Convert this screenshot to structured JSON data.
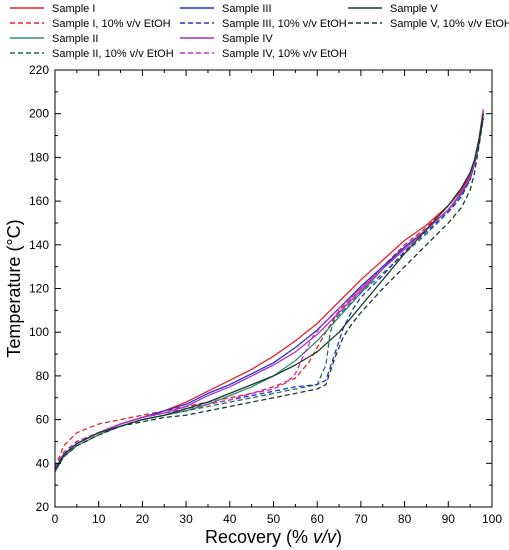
{
  "chart_data": {
    "type": "line",
    "title": "",
    "xlabel_main": "Recovery (% ",
    "xlabel_italic": "v/v",
    "xlabel_end": ")",
    "ylabel": "Temperature (°C)",
    "xlim": [
      0,
      100
    ],
    "ylim": [
      20,
      220
    ],
    "xticks": [
      0,
      10,
      20,
      30,
      40,
      50,
      60,
      70,
      80,
      90,
      100
    ],
    "yticks": [
      20,
      40,
      60,
      80,
      100,
      120,
      140,
      160,
      180,
      200,
      220
    ],
    "grid": false,
    "legend_placement": "top",
    "series": [
      {
        "name": "Sample I",
        "color": "#e8202a",
        "dash": false,
        "x": [
          0,
          2,
          5,
          10,
          15,
          20,
          25,
          30,
          35,
          40,
          45,
          50,
          55,
          60,
          65,
          70,
          75,
          80,
          85,
          90,
          93,
          95,
          96,
          97,
          98
        ],
        "y": [
          37,
          44,
          49,
          54,
          58,
          61,
          64,
          68,
          73,
          78,
          83,
          89,
          96,
          104,
          114,
          124,
          133,
          142,
          149,
          158,
          165,
          172,
          178,
          188,
          200
        ]
      },
      {
        "name": "Sample I, 10% v/v EtOH",
        "color": "#e8202a",
        "dash": true,
        "x": [
          0,
          2,
          5,
          10,
          15,
          20,
          25,
          30,
          35,
          40,
          45,
          50,
          55,
          58,
          60,
          62,
          65,
          70,
          75,
          80,
          85,
          90,
          93,
          95,
          96,
          97,
          98
        ],
        "y": [
          38,
          48,
          54,
          58,
          60,
          62,
          64,
          66,
          68,
          70,
          72,
          75,
          79,
          86,
          93,
          100,
          110,
          120,
          130,
          140,
          148,
          158,
          165,
          172,
          178,
          188,
          200
        ]
      },
      {
        "name": "Sample II",
        "color": "#2e8b7a",
        "dash": false,
        "x": [
          0,
          2,
          5,
          10,
          15,
          20,
          25,
          30,
          35,
          40,
          45,
          50,
          55,
          60,
          65,
          70,
          75,
          80,
          85,
          90,
          93,
          95,
          96,
          97,
          98
        ],
        "y": [
          36,
          43,
          48,
          53,
          57,
          60,
          62,
          64,
          67,
          71,
          75,
          80,
          87,
          96,
          107,
          118,
          129,
          139,
          147,
          156,
          163,
          170,
          177,
          186,
          198
        ]
      },
      {
        "name": "Sample II, 10% v/v EtOH",
        "color": "#1f6f5f",
        "dash": true,
        "x": [
          0,
          2,
          5,
          10,
          15,
          20,
          25,
          30,
          35,
          40,
          45,
          50,
          55,
          60,
          62,
          63,
          64,
          66,
          70,
          75,
          80,
          85,
          90,
          93,
          95,
          96,
          97,
          98
        ],
        "y": [
          38,
          44,
          49,
          54,
          57,
          60,
          62,
          64,
          66,
          68,
          70,
          72,
          74,
          76,
          85,
          100,
          106,
          110,
          118,
          127,
          136,
          145,
          155,
          162,
          170,
          177,
          186,
          198
        ]
      },
      {
        "name": "Sample III",
        "color": "#2233cc",
        "dash": false,
        "x": [
          0,
          2,
          5,
          10,
          15,
          20,
          25,
          30,
          35,
          40,
          45,
          50,
          55,
          60,
          65,
          70,
          75,
          80,
          85,
          90,
          93,
          95,
          96,
          97,
          98
        ],
        "y": [
          37,
          44,
          49,
          54,
          58,
          61,
          64,
          67,
          72,
          76,
          81,
          86,
          93,
          101,
          111,
          121,
          130,
          139,
          147,
          156,
          164,
          171,
          178,
          188,
          201
        ]
      },
      {
        "name": "Sample III, 10% v/v EtOH",
        "color": "#2233cc",
        "dash": true,
        "x": [
          0,
          2,
          5,
          10,
          15,
          20,
          25,
          30,
          35,
          40,
          45,
          50,
          55,
          60,
          62,
          64,
          66,
          68,
          70,
          75,
          80,
          85,
          90,
          93,
          95,
          96,
          97,
          98
        ],
        "y": [
          38,
          45,
          50,
          54,
          58,
          61,
          63,
          65,
          67,
          69,
          71,
          73,
          75,
          76,
          78,
          90,
          102,
          110,
          116,
          126,
          137,
          146,
          155,
          162,
          170,
          177,
          187,
          200
        ]
      },
      {
        "name": "Sample IV",
        "color": "#b22cc8",
        "dash": false,
        "x": [
          0,
          2,
          5,
          10,
          15,
          20,
          25,
          30,
          35,
          40,
          45,
          50,
          55,
          60,
          65,
          70,
          75,
          80,
          85,
          90,
          93,
          95,
          96,
          97,
          98
        ],
        "y": [
          37,
          44,
          49,
          54,
          58,
          61,
          63,
          66,
          71,
          75,
          80,
          85,
          91,
          99,
          109,
          119,
          129,
          138,
          147,
          156,
          164,
          171,
          178,
          188,
          202
        ]
      },
      {
        "name": "Sample IV, 10% v/v EtOH",
        "color": "#c82cc8",
        "dash": true,
        "x": [
          0,
          2,
          5,
          10,
          15,
          20,
          25,
          30,
          35,
          40,
          45,
          50,
          53,
          55,
          57,
          59,
          61,
          65,
          70,
          75,
          80,
          85,
          90,
          93,
          95,
          96,
          97,
          98
        ],
        "y": [
          38,
          45,
          50,
          54,
          58,
          61,
          63,
          65,
          67,
          69,
          72,
          74,
          77,
          81,
          90,
          98,
          103,
          111,
          120,
          129,
          138,
          147,
          156,
          164,
          171,
          178,
          188,
          202
        ]
      },
      {
        "name": "Sample V",
        "color": "#1a3a2a",
        "dash": false,
        "x": [
          0,
          2,
          5,
          10,
          15,
          20,
          25,
          30,
          35,
          40,
          45,
          50,
          55,
          60,
          65,
          70,
          75,
          80,
          85,
          90,
          93,
          95,
          96,
          97,
          98
        ],
        "y": [
          37,
          44,
          49,
          54,
          57,
          60,
          62,
          65,
          68,
          72,
          76,
          80,
          85,
          91,
          100,
          112,
          124,
          136,
          147,
          158,
          166,
          173,
          179,
          188,
          200
        ]
      },
      {
        "name": "Sample V, 10% v/v EtOH",
        "color": "#1a3a2a",
        "dash": true,
        "x": [
          0,
          2,
          5,
          10,
          15,
          20,
          25,
          30,
          35,
          40,
          45,
          50,
          55,
          60,
          62,
          64,
          66,
          68,
          70,
          75,
          80,
          85,
          90,
          93,
          95,
          96,
          97,
          98
        ],
        "y": [
          37,
          43,
          48,
          53,
          57,
          59,
          61,
          62,
          64,
          66,
          68,
          70,
          72,
          74,
          76,
          88,
          98,
          104,
          109,
          120,
          130,
          140,
          150,
          157,
          165,
          173,
          185,
          198
        ]
      }
    ]
  }
}
